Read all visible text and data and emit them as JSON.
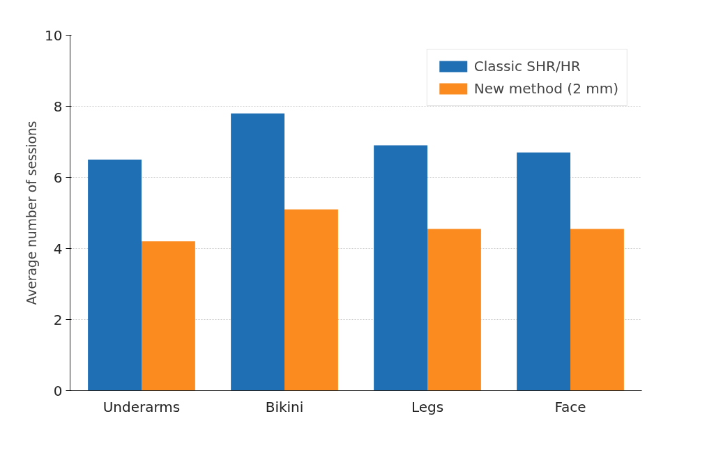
{
  "chart_data": {
    "type": "bar",
    "ylabel": "Average number of sessions",
    "categories": [
      "Underarms",
      "Bikini",
      "Legs",
      "Face"
    ],
    "series": [
      {
        "name": "Classic SHR/HR",
        "color": "#1f6fb4",
        "values": [
          6.5,
          7.8,
          6.9,
          6.7
        ]
      },
      {
        "name": "New method (2 mm)",
        "color": "#fc8b1f",
        "values": [
          4.2,
          5.1,
          4.55,
          4.55
        ]
      }
    ],
    "ylim": [
      0,
      10
    ],
    "yticks": [
      0,
      2,
      4,
      6,
      8,
      10
    ],
    "grid": "y",
    "legend": "top right"
  }
}
